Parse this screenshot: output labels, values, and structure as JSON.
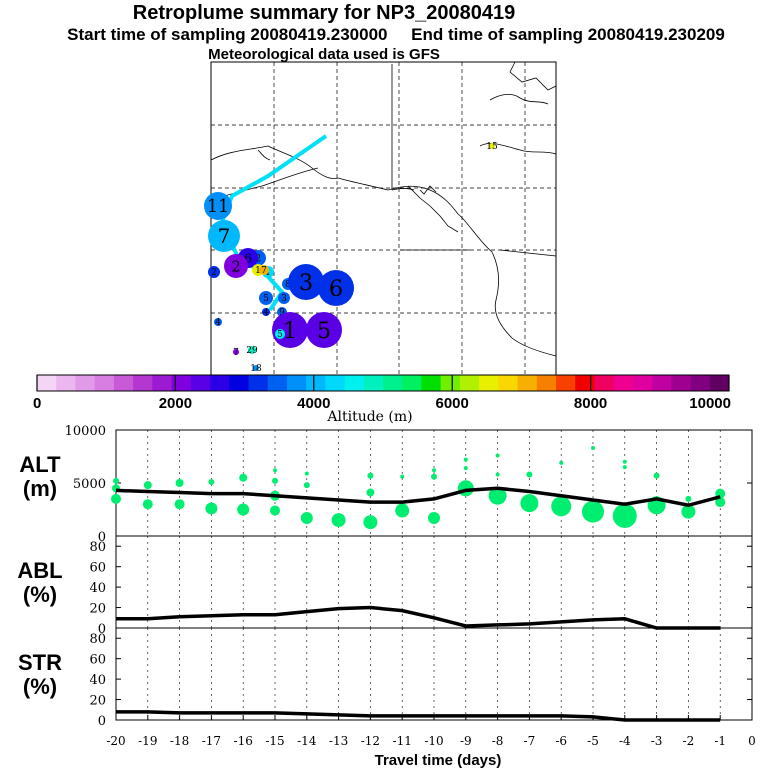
{
  "title": "Retroplume summary for NP3_20080419",
  "subtitle": "Start time of sampling 20080419.230000     End time of sampling 20080419.230209",
  "met_line": "Meteorological data used is GFS",
  "colorbar": {
    "label": "Altitude (m)",
    "ticks": [
      "0",
      "2000",
      "4000",
      "6000",
      "8000",
      "10000"
    ],
    "range": [
      0,
      10000
    ],
    "colors": [
      "#f5d5f5",
      "#ebb7ee",
      "#e19ae8",
      "#d87ee2",
      "#c85ad8",
      "#b337d0",
      "#9c1ad2",
      "#8000e0",
      "#5a00e6",
      "#2c00e6",
      "#0000e0",
      "#0030e8",
      "#0060f0",
      "#0090f8",
      "#00b8fc",
      "#00d8fc",
      "#00f0f0",
      "#00f0c0",
      "#00f090",
      "#00f060",
      "#00e000",
      "#70f000",
      "#b0f000",
      "#e8f000",
      "#f8d800",
      "#f8b000",
      "#f88000",
      "#f84000",
      "#f00000",
      "#f00060",
      "#f00090",
      "#e000a0",
      "#c000a0",
      "#a00090",
      "#800080",
      "#600060"
    ]
  },
  "map_markers": [
    {
      "label": "15",
      "alt": 6500,
      "size": 3
    },
    {
      "label": "11",
      "alt": 3700,
      "size": 14
    },
    {
      "label": "7",
      "alt": 3900,
      "size": 16
    },
    {
      "label": "2",
      "alt": 3200,
      "size": 6
    },
    {
      "label": "2",
      "alt": 3600,
      "size": 8
    },
    {
      "label": "6",
      "alt": 2600,
      "size": 10
    },
    {
      "label": "2",
      "alt": 2200,
      "size": 12
    },
    {
      "label": "1",
      "alt": 6500,
      "size": 6
    },
    {
      "label": "1",
      "alt": 4200,
      "size": 6
    },
    {
      "label": "7",
      "alt": 7000,
      "size": 5
    },
    {
      "label": "8",
      "alt": 3600,
      "size": 6
    },
    {
      "label": "3",
      "alt": 3300,
      "size": 18
    },
    {
      "label": "6",
      "alt": 3300,
      "size": 18
    },
    {
      "label": "5",
      "alt": 3600,
      "size": 7
    },
    {
      "label": "3",
      "alt": 3500,
      "size": 6
    },
    {
      "label": "4",
      "alt": 3200,
      "size": 4
    },
    {
      "label": "9",
      "alt": 3500,
      "size": 5
    },
    {
      "label": "6",
      "alt": 3800,
      "size": 6
    },
    {
      "label": "1",
      "alt": 2300,
      "size": 18
    },
    {
      "label": "5",
      "alt": 2300,
      "size": 18
    },
    {
      "label": "5",
      "alt": 4500,
      "size": 5
    },
    {
      "label": "4",
      "alt": 3500,
      "size": 4
    },
    {
      "label": "7",
      "alt": 2000,
      "size": 3
    },
    {
      "label": "29",
      "alt": 4800,
      "size": 4
    },
    {
      "label": "18",
      "alt": 3700,
      "size": 3
    }
  ],
  "chart_data": [
    {
      "type": "line",
      "name": "ALT",
      "ylabel": "ALT\n(m)",
      "ylabel_lines": [
        "ALT",
        "(m)"
      ],
      "ylim": [
        0,
        10000
      ],
      "yticks": [
        "10000",
        "5000",
        "0"
      ],
      "ytick_values": [
        10000,
        5000,
        0
      ],
      "xlim": [
        -20,
        0
      ],
      "x": [
        -20,
        -19,
        -18,
        -17,
        -16,
        -15,
        -14,
        -13,
        -12,
        -11,
        -10,
        -9,
        -8,
        -7,
        -6,
        -5,
        -4,
        -3,
        -2,
        -1
      ],
      "y": [
        4300,
        4200,
        4100,
        4000,
        4000,
        3800,
        3600,
        3400,
        3200,
        3200,
        3500,
        4300,
        4500,
        4200,
        3800,
        3400,
        3000,
        3500,
        2900,
        3700
      ],
      "scatter": [
        [
          -20,
          5200,
          3
        ],
        [
          -20,
          4500,
          4
        ],
        [
          -20,
          3500,
          5
        ],
        [
          -19,
          4800,
          4
        ],
        [
          -19,
          3000,
          5
        ],
        [
          -18,
          5000,
          4
        ],
        [
          -18,
          3000,
          5
        ],
        [
          -17,
          5100,
          3
        ],
        [
          -17,
          2600,
          6
        ],
        [
          -16,
          5500,
          4
        ],
        [
          -16,
          2500,
          6
        ],
        [
          -15,
          6200,
          2
        ],
        [
          -15,
          5200,
          3
        ],
        [
          -15,
          3800,
          5
        ],
        [
          -15,
          2400,
          5
        ],
        [
          -14,
          5900,
          2
        ],
        [
          -14,
          4800,
          3
        ],
        [
          -14,
          1700,
          6
        ],
        [
          -13,
          1500,
          7
        ],
        [
          -12,
          5700,
          3
        ],
        [
          -12,
          4100,
          4
        ],
        [
          -12,
          1300,
          7
        ],
        [
          -11,
          5600,
          2
        ],
        [
          -11,
          2400,
          7
        ],
        [
          -10,
          6200,
          2
        ],
        [
          -10,
          5600,
          3
        ],
        [
          -10,
          1700,
          6
        ],
        [
          -9,
          7200,
          2
        ],
        [
          -9,
          6400,
          2
        ],
        [
          -9,
          4500,
          8
        ],
        [
          -8,
          7600,
          2
        ],
        [
          -8,
          5800,
          2
        ],
        [
          -8,
          3800,
          9
        ],
        [
          -7,
          5800,
          3
        ],
        [
          -7,
          3100,
          9
        ],
        [
          -6,
          6900,
          2
        ],
        [
          -6,
          2800,
          10
        ],
        [
          -5,
          8300,
          2
        ],
        [
          -5,
          2300,
          11
        ],
        [
          -4,
          7000,
          2
        ],
        [
          -4,
          6500,
          2
        ],
        [
          -4,
          1900,
          12
        ],
        [
          -3,
          5700,
          3
        ],
        [
          -3,
          2900,
          9
        ],
        [
          -2,
          3500,
          3
        ],
        [
          -2,
          2300,
          7
        ],
        [
          -1,
          4000,
          5
        ],
        [
          -1,
          3200,
          5
        ]
      ]
    },
    {
      "type": "line",
      "name": "ABL",
      "ylabel": "ABL\n(%)",
      "ylabel_lines": [
        "ABL",
        "(%)"
      ],
      "ylim": [
        0,
        90
      ],
      "yticks": [
        "80",
        "60",
        "40",
        "20",
        "0"
      ],
      "ytick_values": [
        80,
        60,
        40,
        20,
        0
      ],
      "xlim": [
        -20,
        0
      ],
      "x": [
        -20,
        -19,
        -18,
        -17,
        -16,
        -15,
        -14,
        -13,
        -12,
        -11,
        -10,
        -9,
        -8,
        -7,
        -6,
        -5,
        -4,
        -3,
        -2,
        -1
      ],
      "y": [
        9,
        9,
        11,
        12,
        13,
        13,
        16,
        19,
        20,
        17,
        10,
        2,
        3,
        4,
        6,
        8,
        9,
        0,
        0,
        0
      ]
    },
    {
      "type": "line",
      "name": "STR",
      "ylabel": "STR\n(%)",
      "ylabel_lines": [
        "STR",
        "(%)"
      ],
      "ylim": [
        0,
        90
      ],
      "yticks": [
        "80",
        "60",
        "40",
        "20",
        "0"
      ],
      "ytick_values": [
        80,
        60,
        40,
        20,
        0
      ],
      "xlim": [
        -20,
        0
      ],
      "x": [
        -20,
        -19,
        -18,
        -17,
        -16,
        -15,
        -14,
        -13,
        -12,
        -11,
        -10,
        -9,
        -8,
        -7,
        -6,
        -5,
        -4,
        -3,
        -2,
        -1
      ],
      "y": [
        8,
        8,
        7,
        7,
        7,
        7,
        6,
        5,
        4,
        4,
        4,
        4,
        4,
        4,
        4,
        3,
        0,
        0,
        0,
        0
      ]
    }
  ],
  "xaxis": {
    "label": "Travel time (days)",
    "ticks": [
      "-20",
      "-19",
      "-18",
      "-17",
      "-16",
      "-15",
      "-14",
      "-13",
      "-12",
      "-11",
      "-10",
      "-9",
      "-8",
      "-7",
      "-6",
      "-5",
      "-4",
      "-3",
      "-2",
      "-1",
      "0"
    ],
    "values": [
      -20,
      -19,
      -18,
      -17,
      -16,
      -15,
      -14,
      -13,
      -12,
      -11,
      -10,
      -9,
      -8,
      -7,
      -6,
      -5,
      -4,
      -3,
      -2,
      -1,
      0
    ]
  }
}
